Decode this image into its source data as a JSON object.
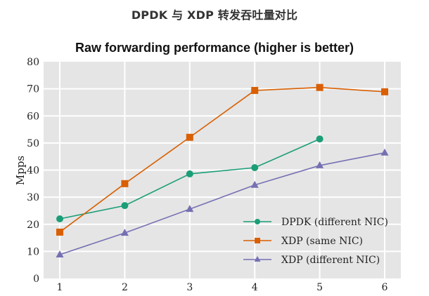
{
  "header": {
    "title": "DPDK 与 XDP 转发吞吐量对比"
  },
  "chart_data": {
    "type": "line",
    "title": "Raw forwarding performance (higher is better)",
    "xlabel": "",
    "ylabel": "Mpps",
    "x": [
      1,
      2,
      3,
      4,
      5,
      6
    ],
    "x_tick_labels": [
      "1",
      "2",
      "3",
      "4",
      "5",
      "6"
    ],
    "y_tick_labels": [
      "0",
      "10",
      "20",
      "30",
      "40",
      "50",
      "60",
      "70",
      "80"
    ],
    "ylim": [
      0,
      80
    ],
    "grid": true,
    "background": "#e5e5e5",
    "legend_position": "lower right",
    "series": [
      {
        "name": "DPDK (different NIC)",
        "marker": "circle",
        "color": "#1b9e77",
        "values": [
          22.0,
          26.9,
          38.6,
          40.9,
          51.5,
          null
        ]
      },
      {
        "name": "XDP (same NIC)",
        "marker": "square",
        "color": "#d95f02",
        "values": [
          17.1,
          35.0,
          52.1,
          69.4,
          70.5,
          68.9
        ]
      },
      {
        "name": "XDP (different NIC)",
        "marker": "triangle",
        "color": "#7570b3",
        "values": [
          8.8,
          16.8,
          25.6,
          34.5,
          41.7,
          46.4
        ]
      }
    ]
  }
}
